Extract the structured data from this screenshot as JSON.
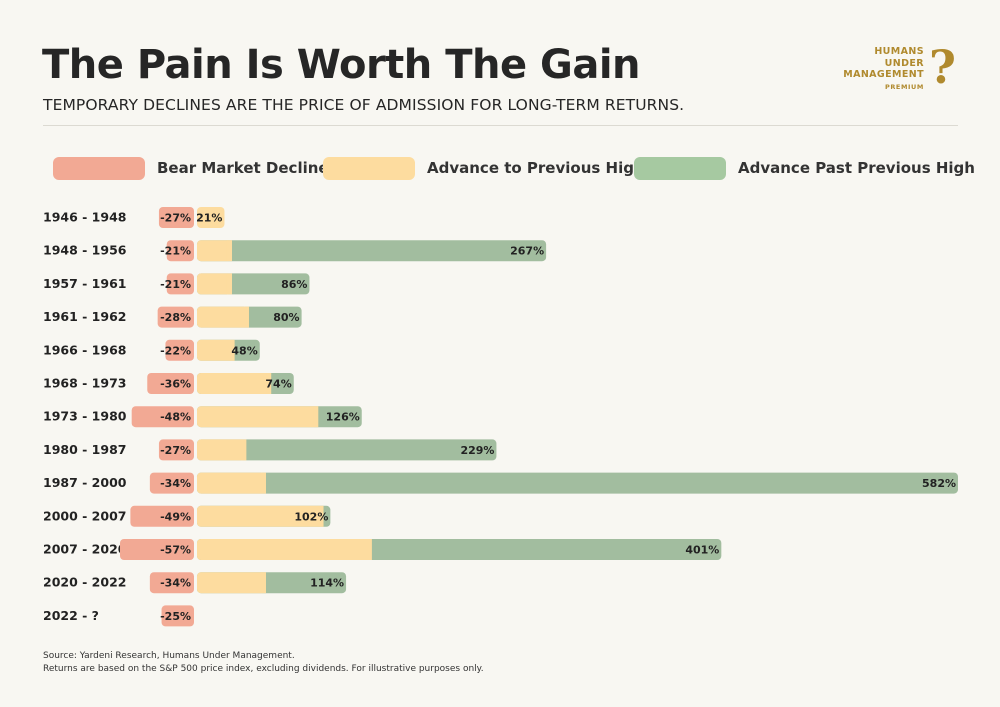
{
  "header": {
    "title": "The Pain Is Worth The Gain",
    "subtitle": "TEMPORARY DECLINES ARE THE PRICE OF ADMISSION FOR LONG-TERM RETURNS."
  },
  "logo": {
    "line1": "HUMANS",
    "line2": "UNDER",
    "line3": "MANAGEMENT",
    "badge": "PREMIUM",
    "glyph": "?"
  },
  "legend": [
    {
      "label": "Bear Market Decline",
      "color": "#f2a994"
    },
    {
      "label": "Advance to Previous High",
      "color": "#fddc9f"
    },
    {
      "label": "Advance Past Previous High",
      "color": "#a6c9a1"
    }
  ],
  "chart_data": {
    "type": "bar",
    "orientation": "horizontal",
    "categories": [
      "1946 - 1948",
      "1948 - 1956",
      "1957 - 1961",
      "1961 - 1962",
      "1966 - 1968",
      "1968 - 1973",
      "1973 - 1980",
      "1980 - 1987",
      "1987 - 2000",
      "2000 - 2007",
      "2007 - 2020",
      "2020 - 2022",
      "2022 - ?"
    ],
    "series": [
      {
        "name": "Bear Market Decline",
        "values": [
          -27,
          -21,
          -21,
          -28,
          -22,
          -36,
          -48,
          -27,
          -34,
          -49,
          -57,
          -34,
          -25
        ],
        "color": "#f2a994"
      },
      {
        "name": "Advance to Previous High",
        "values": [
          21,
          26,
          26,
          39,
          28,
          56,
          92,
          37,
          52,
          96,
          133,
          52,
          null
        ],
        "color": "#fddc9f"
      },
      {
        "name": "Advance Past Previous High",
        "values": [
          0,
          241,
          60,
          41,
          20,
          18,
          34,
          192,
          530,
          6,
          268,
          62,
          null
        ],
        "color": "#a2bd9f"
      }
    ],
    "total_labels": [
      "21%",
      "267%",
      "86%",
      "80%",
      "48%",
      "74%",
      "126%",
      "229%",
      "582%",
      "102%",
      "401%",
      "114%",
      null
    ],
    "decline_labels": [
      "-27%",
      "-21%",
      "-21%",
      "-28%",
      "-22%",
      "-36%",
      "-48%",
      "-27%",
      "-34%",
      "-49%",
      "-57%",
      "-34%",
      "-25%"
    ]
  },
  "footer": {
    "source": "Source: Yardeni Research, Humans Under Management.",
    "note": "Returns are based on the S&P 500 price index, excluding dividends. For illustrative purposes only."
  }
}
